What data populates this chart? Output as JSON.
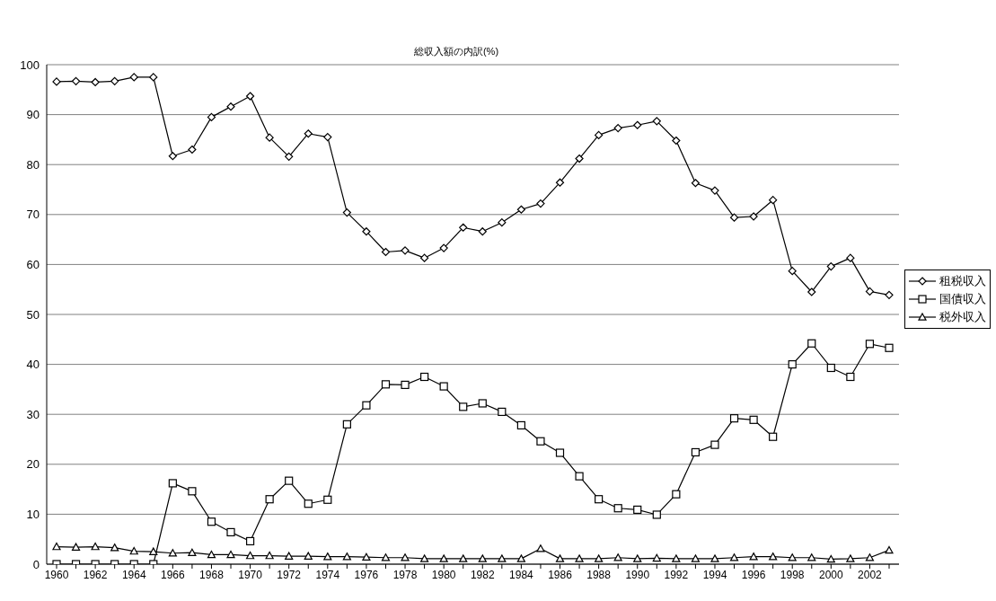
{
  "chart_data": {
    "type": "line",
    "title": "総収入額の内訳(%)",
    "categories": [
      "1960",
      null,
      "1962",
      null,
      "1964",
      null,
      "1966",
      null,
      "1968",
      null,
      "1970",
      null,
      "1972",
      null,
      "1974",
      null,
      "1976",
      null,
      "1978",
      null,
      "1980",
      null,
      "1982",
      null,
      "1984",
      null,
      "1986",
      null,
      "1988",
      null,
      "1990",
      null,
      "1992",
      null,
      "1994",
      null,
      "1996",
      null,
      "1998",
      null,
      "2000",
      null,
      "2002",
      null
    ],
    "series": [
      {
        "name": "租税収入",
        "color": "#000000",
        "marker": "diamond",
        "values": [
          96.6,
          96.7,
          96.5,
          96.7,
          97.5,
          97.5,
          81.7,
          83.0,
          89.5,
          91.6,
          93.7,
          85.4,
          81.6,
          86.2,
          85.5,
          70.4,
          66.6,
          62.5,
          62.8,
          61.3,
          63.3,
          67.4,
          66.6,
          68.4,
          71.0,
          72.2,
          76.4,
          81.2,
          85.9,
          87.3,
          87.9,
          88.7,
          84.8,
          76.3,
          74.8,
          69.4,
          69.6,
          72.9,
          58.7,
          54.5,
          59.6,
          61.3,
          54.6,
          53.9
        ]
      },
      {
        "name": "国債収入",
        "color": "#000000",
        "marker": "square",
        "values": [
          0,
          0,
          0,
          0,
          0,
          0,
          16.2,
          14.6,
          8.5,
          6.4,
          4.6,
          13.0,
          16.7,
          12.1,
          12.9,
          28.0,
          31.8,
          36.0,
          35.9,
          37.5,
          35.6,
          31.5,
          32.2,
          30.5,
          27.8,
          24.6,
          22.3,
          17.6,
          13.0,
          11.2,
          10.9,
          9.9,
          14.0,
          22.4,
          23.9,
          29.2,
          28.9,
          25.5,
          40.0,
          44.2,
          39.3,
          37.5,
          44.1,
          43.3
        ]
      },
      {
        "name": "税外収入",
        "color": "#000000",
        "marker": "triangle",
        "values": [
          3.5,
          3.4,
          3.5,
          3.3,
          2.6,
          2.5,
          2.2,
          2.3,
          1.9,
          1.9,
          1.7,
          1.7,
          1.6,
          1.6,
          1.5,
          1.5,
          1.4,
          1.3,
          1.3,
          1.1,
          1.1,
          1.1,
          1.1,
          1.1,
          1.1,
          3.1,
          1.1,
          1.1,
          1.1,
          1.3,
          1.1,
          1.2,
          1.1,
          1.1,
          1.1,
          1.3,
          1.5,
          1.5,
          1.3,
          1.3,
          1.0,
          1.1,
          1.3,
          2.8
        ]
      }
    ],
    "ylim": [
      0,
      100
    ],
    "yticks": [
      0,
      10,
      20,
      30,
      40,
      50,
      60,
      70,
      80,
      90,
      100
    ],
    "grid": "y",
    "legend": "right",
    "line_style": "solid"
  }
}
